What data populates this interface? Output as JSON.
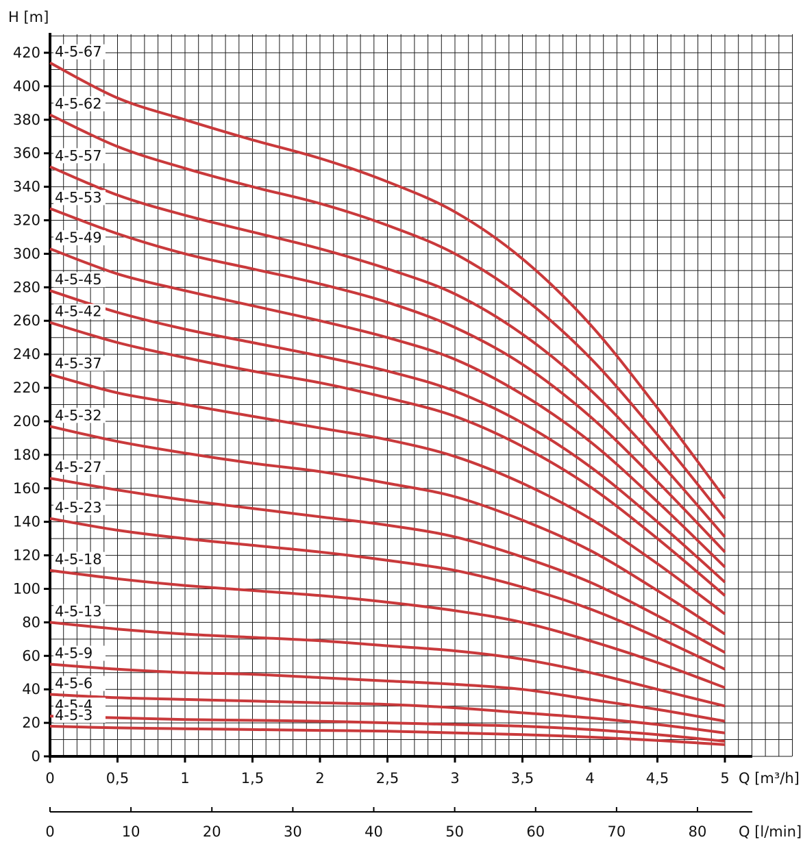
{
  "chart_data": {
    "type": "line",
    "ylabel": "H [m]",
    "xlabel": "Q [m³/h]",
    "xlabel2": "Q [l/min]",
    "xlim": [
      0,
      5
    ],
    "ylim": [
      0,
      420
    ],
    "x2lim": [
      0,
      83.3
    ],
    "grid": true,
    "y_ticks": [
      "0",
      "20",
      "40",
      "60",
      "80",
      "100",
      "120",
      "140",
      "160",
      "180",
      "200",
      "220",
      "240",
      "260",
      "280",
      "300",
      "320",
      "340",
      "360",
      "380",
      "400",
      "420"
    ],
    "x_ticks": [
      "0",
      "0,5",
      "1",
      "1,5",
      "2",
      "2,5",
      "3",
      "3,5",
      "4",
      "4,5",
      "5"
    ],
    "x2_ticks": [
      "0",
      "10",
      "20",
      "30",
      "40",
      "50",
      "60",
      "70",
      "80"
    ],
    "x": [
      0,
      0.5,
      1,
      1.5,
      2,
      2.5,
      3,
      3.5,
      4,
      4.5,
      5
    ],
    "series": [
      {
        "name": "4-5-67",
        "values": [
          414,
          393,
          380,
          368,
          357,
          343,
          325,
          297,
          258,
          208,
          154
        ]
      },
      {
        "name": "4-5-62",
        "values": [
          383,
          364,
          351,
          340,
          330,
          317,
          300,
          274,
          238,
          192,
          142
        ]
      },
      {
        "name": "4-5-57",
        "values": [
          352,
          335,
          323,
          313,
          303,
          291,
          276,
          252,
          219,
          177,
          131
        ]
      },
      {
        "name": "4-5-53",
        "values": [
          327,
          312,
          300,
          291,
          282,
          271,
          256,
          234,
          203,
          164,
          122
        ]
      },
      {
        "name": "4-5-49",
        "values": [
          303,
          288,
          278,
          269,
          260,
          250,
          237,
          216,
          188,
          152,
          113
        ]
      },
      {
        "name": "4-5-45",
        "values": [
          278,
          265,
          255,
          247,
          239,
          230,
          218,
          199,
          173,
          140,
          104
        ]
      },
      {
        "name": "4-5-42",
        "values": [
          259,
          247,
          238,
          230,
          223,
          214,
          203,
          185,
          161,
          130,
          96
        ]
      },
      {
        "name": "4-5-37",
        "values": [
          228,
          217,
          210,
          203,
          196,
          189,
          179,
          163,
          142,
          115,
          85
        ]
      },
      {
        "name": "4-5-32",
        "values": [
          197,
          188,
          181,
          175,
          170,
          163,
          155,
          141,
          123,
          99,
          73
        ]
      },
      {
        "name": "4-5-27",
        "values": [
          166,
          159,
          153,
          148,
          143,
          138,
          131,
          119,
          104,
          84,
          62
        ]
      },
      {
        "name": "4-5-23",
        "values": [
          142,
          135,
          130,
          126,
          122,
          117,
          111,
          101,
          88,
          71,
          52
        ]
      },
      {
        "name": "4-5-18",
        "values": [
          111,
          106,
          102,
          99,
          96,
          92,
          87,
          80,
          69,
          56,
          41
        ]
      },
      {
        "name": "4-5-13",
        "values": [
          80,
          76,
          73,
          71,
          69,
          66,
          63,
          58,
          50,
          40,
          30
        ]
      },
      {
        "name": "4-5-9",
        "values": [
          55,
          52,
          50,
          49,
          47,
          45,
          43,
          40,
          34,
          28,
          21
        ]
      },
      {
        "name": "4-5-6",
        "values": [
          37,
          35,
          34,
          33,
          32,
          31,
          29,
          26,
          23,
          19,
          14
        ]
      },
      {
        "name": "4-5-4",
        "values": [
          24,
          23,
          22,
          21.5,
          21,
          20,
          19,
          18,
          16,
          13,
          9
        ]
      },
      {
        "name": "4-5-3",
        "values": [
          18,
          17,
          16.5,
          16,
          15.5,
          15,
          14,
          13,
          11.5,
          9.5,
          7
        ]
      }
    ],
    "colors": {
      "curve": "#c9393b",
      "grid": "#1a1a1a",
      "axis": "#000000"
    }
  }
}
